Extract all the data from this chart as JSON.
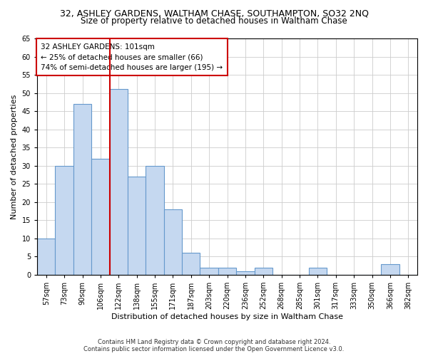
{
  "title1": "32, ASHLEY GARDENS, WALTHAM CHASE, SOUTHAMPTON, SO32 2NQ",
  "title2": "Size of property relative to detached houses in Waltham Chase",
  "xlabel": "Distribution of detached houses by size in Waltham Chase",
  "ylabel": "Number of detached properties",
  "footnote1": "Contains HM Land Registry data © Crown copyright and database right 2024.",
  "footnote2": "Contains public sector information licensed under the Open Government Licence v3.0.",
  "categories": [
    "57sqm",
    "73sqm",
    "90sqm",
    "106sqm",
    "122sqm",
    "138sqm",
    "155sqm",
    "171sqm",
    "187sqm",
    "203sqm",
    "220sqm",
    "236sqm",
    "252sqm",
    "268sqm",
    "285sqm",
    "301sqm",
    "317sqm",
    "333sqm",
    "350sqm",
    "366sqm",
    "382sqm"
  ],
  "values": [
    10,
    30,
    47,
    32,
    51,
    27,
    30,
    18,
    6,
    2,
    2,
    1,
    2,
    0,
    0,
    2,
    0,
    0,
    0,
    3,
    0
  ],
  "bar_color": "#c5d8f0",
  "bar_edge_color": "#6699cc",
  "vline_x": 3.5,
  "vline_color": "#cc0000",
  "annotation_text": "32 ASHLEY GARDENS: 101sqm\n← 25% of detached houses are smaller (66)\n74% of semi-detached houses are larger (195) →",
  "annotation_box_color": "#ffffff",
  "annotation_box_edge": "#cc0000",
  "ylim": [
    0,
    65
  ],
  "yticks": [
    0,
    5,
    10,
    15,
    20,
    25,
    30,
    35,
    40,
    45,
    50,
    55,
    60,
    65
  ],
  "bg_color": "#ffffff",
  "grid_color": "#cccccc",
  "title1_fontsize": 9,
  "title2_fontsize": 8.5,
  "xlabel_fontsize": 8,
  "ylabel_fontsize": 8,
  "footnote_fontsize": 6,
  "tick_fontsize": 7,
  "ann_fontsize": 7.5
}
